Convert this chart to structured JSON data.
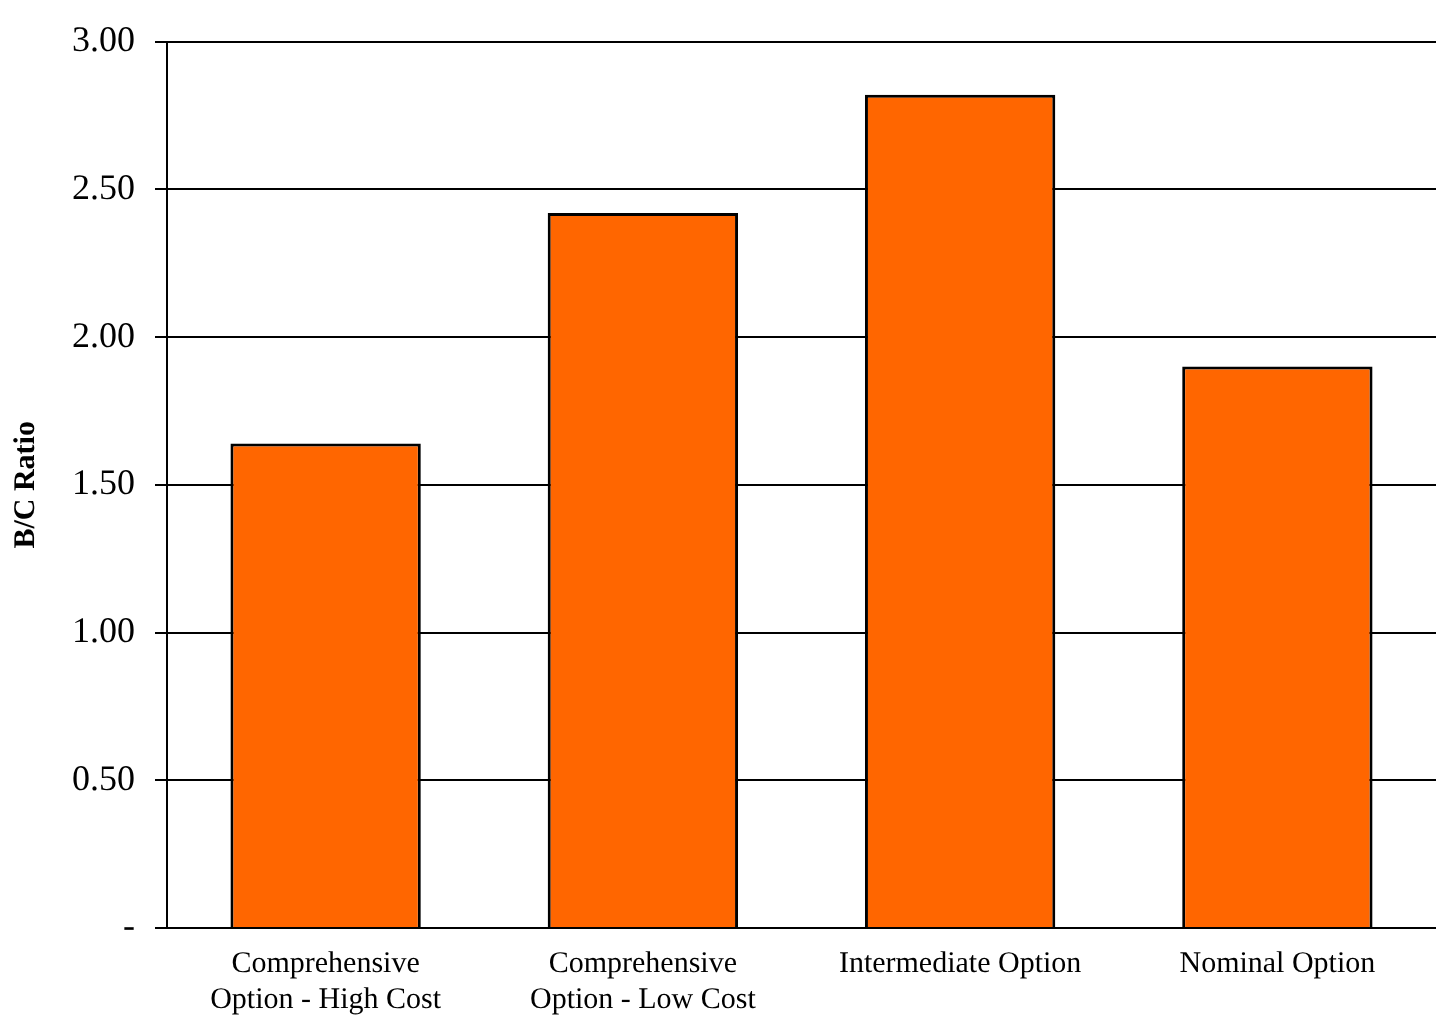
{
  "chart_data": {
    "type": "bar",
    "ylabel": "B/C Ratio",
    "categories": [
      "Comprehensive Option - High Cost",
      "Comprehensive Option - Low Cost",
      "Intermediate Option",
      "Nominal Option"
    ],
    "values": [
      1.64,
      2.42,
      2.82,
      1.9
    ],
    "color": "#ff6600",
    "ylim": [
      0,
      3
    ],
    "yticks": [
      {
        "value": 0,
        "label": "-"
      },
      {
        "value": 0.5,
        "label": "0.50"
      },
      {
        "value": 1,
        "label": "1.00"
      },
      {
        "value": 1.5,
        "label": "1.50"
      },
      {
        "value": 2,
        "label": "2.00"
      },
      {
        "value": 2.5,
        "label": "2.50"
      },
      {
        "value": 3,
        "label": "3.00"
      }
    ],
    "grid": "y",
    "legend": false
  }
}
